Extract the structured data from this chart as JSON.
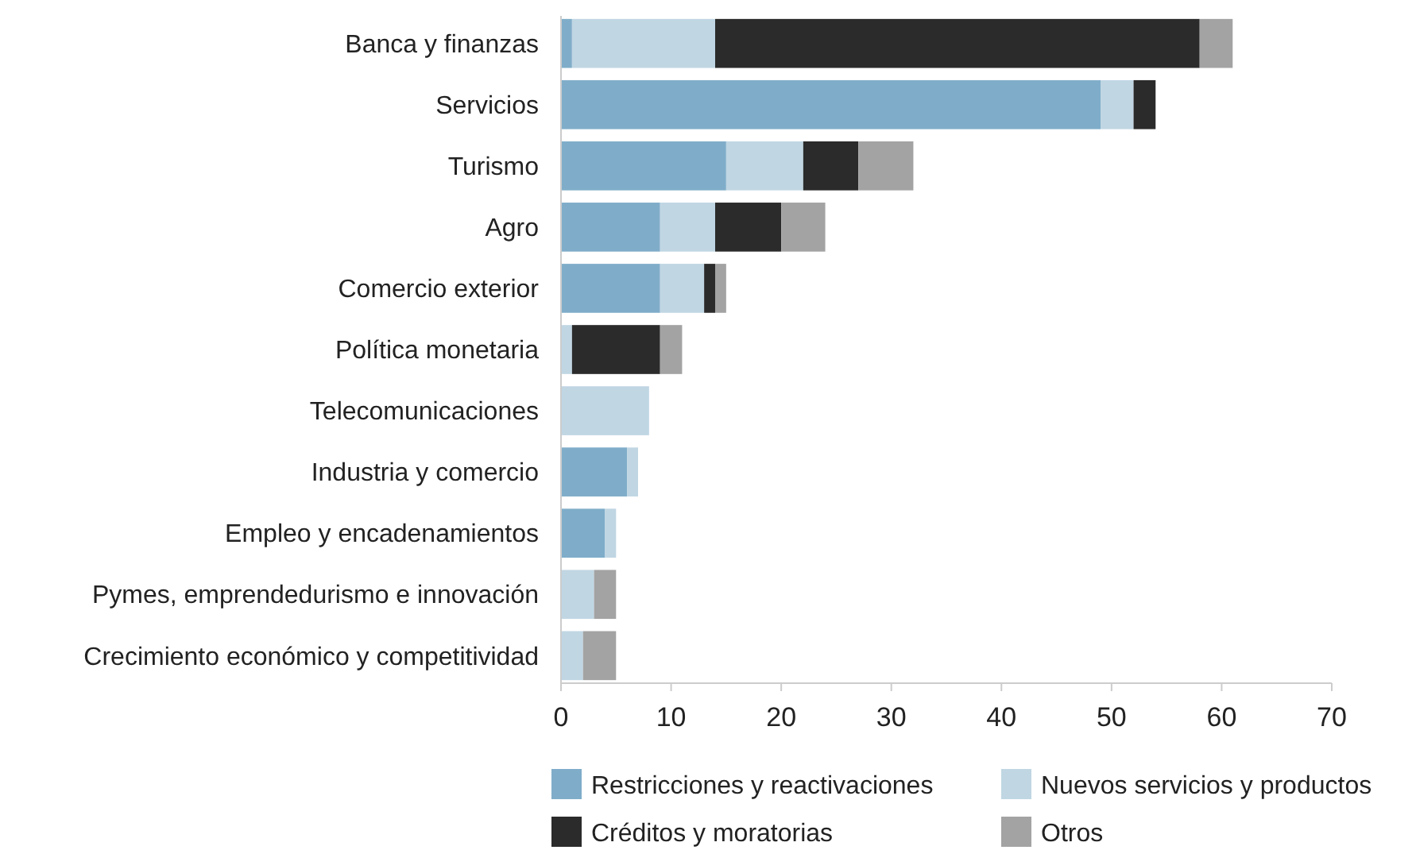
{
  "chart_data": {
    "type": "bar",
    "orientation": "horizontal",
    "stacked": true,
    "categories": [
      "Banca y finanzas",
      "Servicios",
      "Turismo",
      "Agro",
      "Comercio exterior",
      "Política monetaria",
      "Telecomunicaciones",
      "Industria y comercio",
      "Empleo y encadenamientos",
      "Pymes, emprendedurismo e innovación",
      "Crecimiento económico y competitividad"
    ],
    "series": [
      {
        "name": "Restricciones y reactivaciones",
        "color": "#7fadc9",
        "values": [
          1,
          49,
          15,
          9,
          9,
          0,
          0,
          6,
          4,
          0,
          0
        ]
      },
      {
        "name": "Nuevos servicios y productos",
        "color": "#c0d6e3",
        "values": [
          13,
          3,
          7,
          5,
          4,
          1,
          8,
          1,
          1,
          3,
          2
        ]
      },
      {
        "name": "Créditos y moratorias",
        "color": "#2b2b2b",
        "values": [
          44,
          2,
          5,
          6,
          1,
          8,
          0,
          0,
          0,
          0,
          0
        ]
      },
      {
        "name": "Otros",
        "color": "#a3a3a3",
        "values": [
          3,
          0,
          5,
          4,
          1,
          2,
          0,
          0,
          0,
          2,
          3
        ]
      }
    ],
    "xlim": [
      0,
      70
    ],
    "xticks": [
      0,
      10,
      20,
      30,
      40,
      50,
      60,
      70
    ],
    "grid": false,
    "legend": "bottom"
  }
}
